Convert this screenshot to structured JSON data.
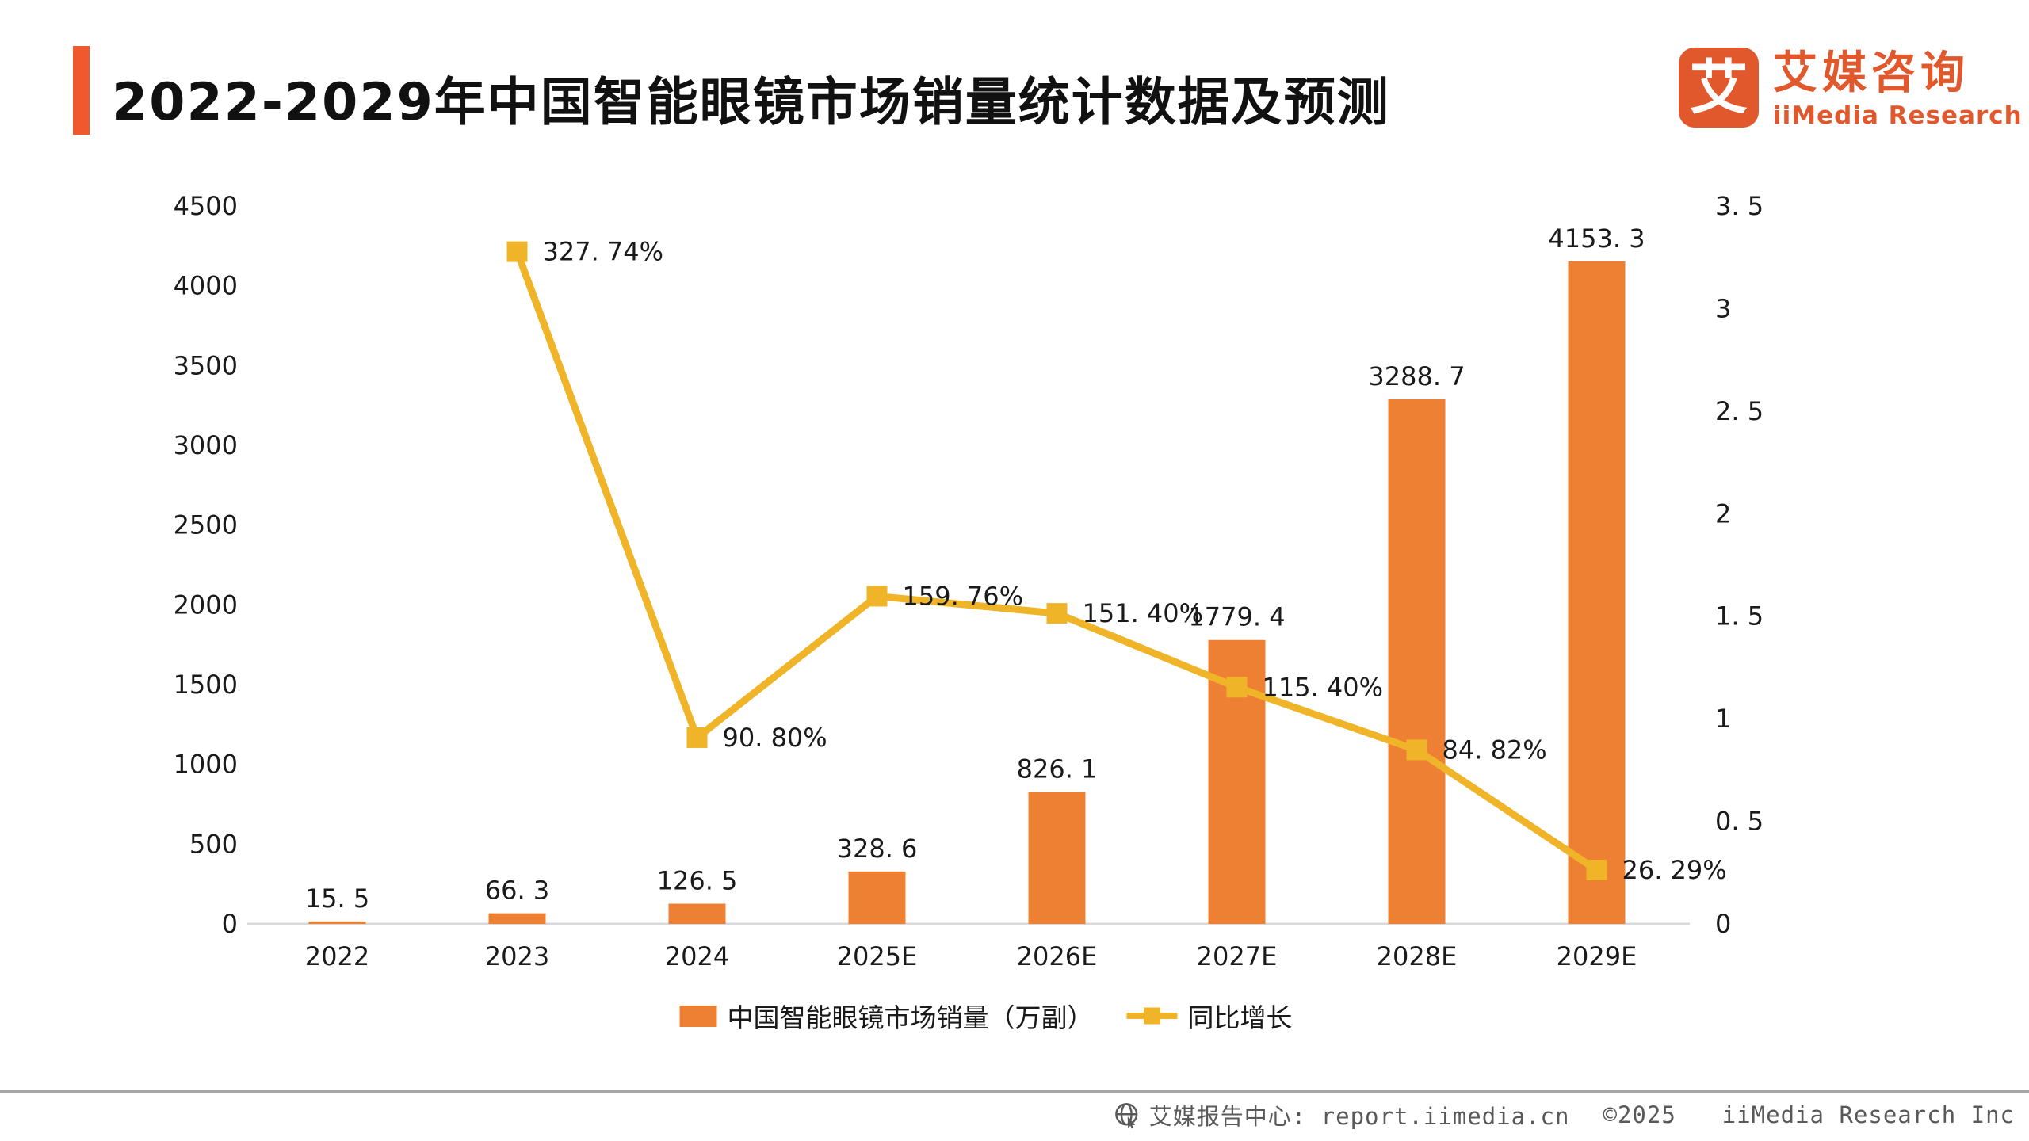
{
  "header": {
    "title": "2022-2029年中国智能眼镜市场销量统计数据及预测",
    "logo": {
      "mark": "艾",
      "name_cn": "艾媒咨询",
      "name_en": "iiMedia Research"
    }
  },
  "chart_data": {
    "type": "bar",
    "subtype": "combo-bar-line",
    "categories": [
      "2022",
      "2023",
      "2024",
      "2025E",
      "2026E",
      "2027E",
      "2028E",
      "2029E"
    ],
    "series": [
      {
        "name": "中国智能眼镜市场销量（万副）",
        "type": "bar",
        "axis": "left",
        "color": "#ED8033",
        "values": [
          15.5,
          66.3,
          126.5,
          328.6,
          826.1,
          1779.4,
          3288.7,
          4153.3
        ],
        "labels": [
          "15. 5",
          "66. 3",
          "126. 5",
          "328. 6",
          "826. 1",
          "1779. 4",
          "3288. 7",
          "4153. 3"
        ]
      },
      {
        "name": "同比增长",
        "type": "line",
        "axis": "right",
        "color": "#EFB428",
        "values_pct": [
          null,
          327.74,
          90.8,
          159.76,
          151.4,
          115.4,
          84.82,
          26.29
        ],
        "labels": [
          null,
          "327. 74%",
          "90. 80%",
          "159. 76%",
          "151. 40%",
          "115. 40%",
          "84. 82%",
          "26. 29%"
        ]
      }
    ],
    "left_axis": {
      "min": 0,
      "max": 4500,
      "step": 500,
      "ticks": [
        "0",
        "500",
        "1000",
        "1500",
        "2000",
        "2500",
        "3000",
        "3500",
        "4000",
        "4500"
      ]
    },
    "right_axis": {
      "min": 0,
      "max": 3.5,
      "step": 0.5,
      "ticks": [
        "0",
        "0. 5",
        "1",
        "1. 5",
        "2",
        "2. 5",
        "3",
        "3. 5"
      ]
    },
    "grid": false,
    "legend_position": "bottom"
  },
  "legend": {
    "bar_label": "中国智能眼镜市场销量（万副）",
    "line_label": "同比增长"
  },
  "footer": {
    "source": "艾媒报告中心: report.iimedia.cn",
    "copyright": "©2025",
    "company": "iiMedia Research Inc"
  },
  "colors": {
    "accent": "#F0592E",
    "logo": "#E2582D",
    "bar": "#ED8033",
    "line": "#EFB428",
    "text": "#1A1A1A",
    "axis_line": "#D9D9D9",
    "footer_text": "#595959",
    "footer_rule": "#A6A6A6"
  }
}
